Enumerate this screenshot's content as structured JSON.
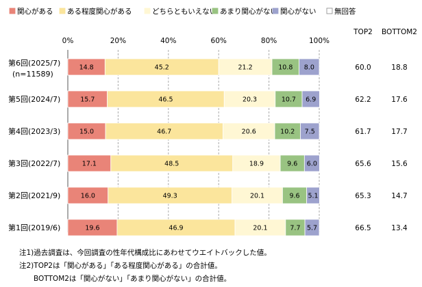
{
  "chart_data": {
    "type": "bar",
    "orientation": "horizontal",
    "stacked": true,
    "legend_position": "top",
    "xlim": [
      0,
      100
    ],
    "x_ticks": [
      "0%",
      "20%",
      "40%",
      "60%",
      "80%",
      "100%"
    ],
    "grid": true,
    "categories": [
      [
        "第6回(2025/7)",
        "(n=11589)"
      ],
      [
        "第5回(2024/7)"
      ],
      [
        "第4回(2023/3)"
      ],
      [
        "第3回(2022/7)"
      ],
      [
        "第2回(2021/9)"
      ],
      [
        "第1回(2019/6)"
      ]
    ],
    "series": [
      {
        "name": "関心がある",
        "color": "#e98478",
        "values": [
          14.8,
          15.7,
          15.0,
          17.1,
          16.0,
          19.6
        ]
      },
      {
        "name": "ある程度関心がある",
        "color": "#fbe59c",
        "values": [
          45.2,
          46.5,
          46.7,
          48.5,
          49.3,
          46.9
        ]
      },
      {
        "name": "どちらともいえない",
        "color": "#fff7d4",
        "values": [
          21.2,
          20.3,
          20.6,
          18.9,
          20.1,
          20.1
        ]
      },
      {
        "name": "あまり関心がない",
        "color": "#99c382",
        "values": [
          10.8,
          10.7,
          10.2,
          9.6,
          9.6,
          7.7
        ]
      },
      {
        "name": "関心がない",
        "color": "#9da2cd",
        "values": [
          8.0,
          6.9,
          7.5,
          6.0,
          5.1,
          5.7
        ]
      },
      {
        "name": "無回答",
        "color": "#ffffff",
        "values": [
          0,
          0,
          0,
          0,
          0,
          0
        ]
      }
    ],
    "side_columns": [
      {
        "header": "TOP2",
        "values": [
          "60.0",
          "62.2",
          "61.7",
          "65.6",
          "65.3",
          "66.5"
        ]
      },
      {
        "header": "BOTTOM2",
        "values": [
          "18.8",
          "17.6",
          "17.7",
          "15.6",
          "14.7",
          "13.4"
        ]
      }
    ]
  },
  "notes": [
    "注1)過去調査は、今回調査の性年代構成比にあわせてウエイトバックした値。",
    "注2)TOP2は「関心がある」「ある程度関心がある」の合計値。",
    "　　BOTTOM2は「関心がない」「あまり関心がない」の合計値。"
  ]
}
